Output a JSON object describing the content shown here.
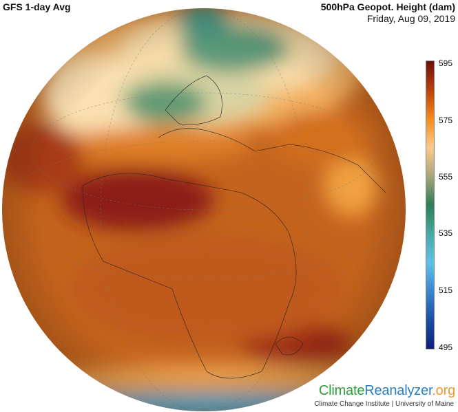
{
  "header": {
    "model_label": "GFS 1-day Avg",
    "variable_label": "500hPa Geopot. Height (dam)",
    "date": "Friday, Aug 09, 2019"
  },
  "colorbar": {
    "ticks": [
      "595",
      "575",
      "555",
      "535",
      "515",
      "495"
    ],
    "colors": [
      "#6e0f0c",
      "#b8420c",
      "#f58a1a",
      "#fcc98a",
      "#a9a57a",
      "#2e7e55",
      "#47a8a4",
      "#5fc2e8",
      "#3a86cf",
      "#1a4fa6",
      "#0d1f7a"
    ]
  },
  "map": {
    "projection": "orthographic",
    "palette": {
      "high": "#8a1a12",
      "mid": "#c85a1a",
      "orange": "#e58a2e",
      "light": "#f7d8a0",
      "green": "#4a8a68"
    }
  },
  "footer": {
    "logo_part1": "Climate",
    "logo_part2": "Reanalyzer",
    "logo_part3": ".org",
    "institution": "Climate Change Institute | University of Maine"
  }
}
